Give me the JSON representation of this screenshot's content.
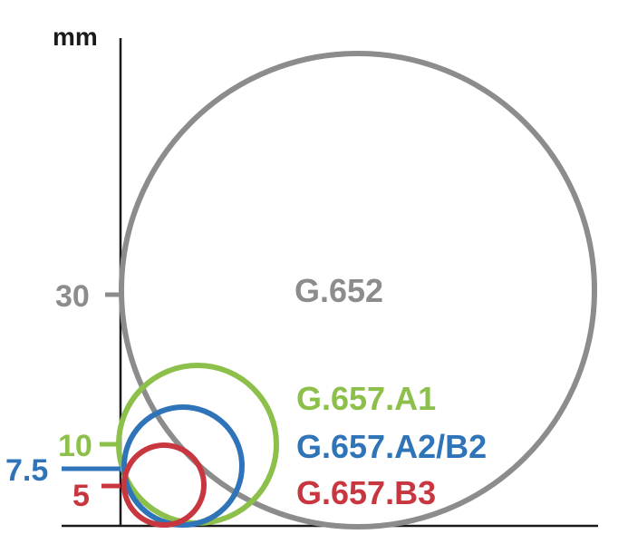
{
  "unit_label": "mm",
  "colors": {
    "axis": "#1a1a1a",
    "g652": "#8c8c8c",
    "a1": "#8dc04a",
    "a2b2": "#2f74b8",
    "b3": "#c8373f"
  },
  "circles": [
    {
      "key": "g652",
      "radius_mm": 30,
      "tick_label": "30",
      "name": "G.652",
      "color": "#8c8c8c"
    },
    {
      "key": "a1",
      "radius_mm": 10,
      "tick_label": "10",
      "name": "G.657.A1",
      "color": "#8dc04a"
    },
    {
      "key": "a2b2",
      "radius_mm": 7.5,
      "tick_label": "7.5",
      "name": "G.657.A2/B2",
      "color": "#2f74b8"
    },
    {
      "key": "b3",
      "radius_mm": 5,
      "tick_label": "5",
      "name": "G.657.B3",
      "color": "#c8373f"
    }
  ]
}
